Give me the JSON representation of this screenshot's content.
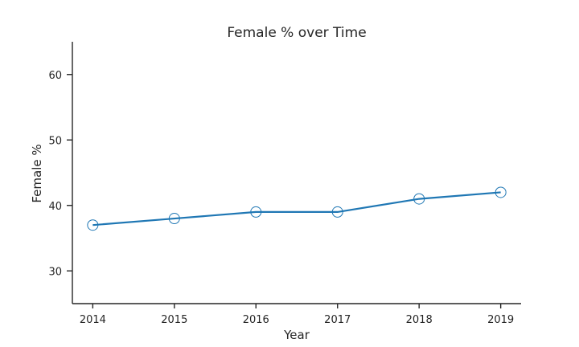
{
  "chart_data": {
    "type": "line",
    "title": "Female % over Time",
    "xlabel": "Year",
    "ylabel": "Female %",
    "categories": [
      "2014",
      "2015",
      "2016",
      "2017",
      "2018",
      "2019"
    ],
    "x": [
      2014,
      2015,
      2016,
      2017,
      2018,
      2019
    ],
    "series": [
      {
        "values": [
          37,
          38,
          39,
          39,
          41,
          42
        ],
        "color": "#1f77b4",
        "marker": "open-circle"
      }
    ],
    "xlim": [
      2013.75,
      2019.25
    ],
    "ylim": [
      25,
      65
    ],
    "yticks": [
      30,
      40,
      50,
      60
    ],
    "grid": false,
    "legend": "none"
  }
}
